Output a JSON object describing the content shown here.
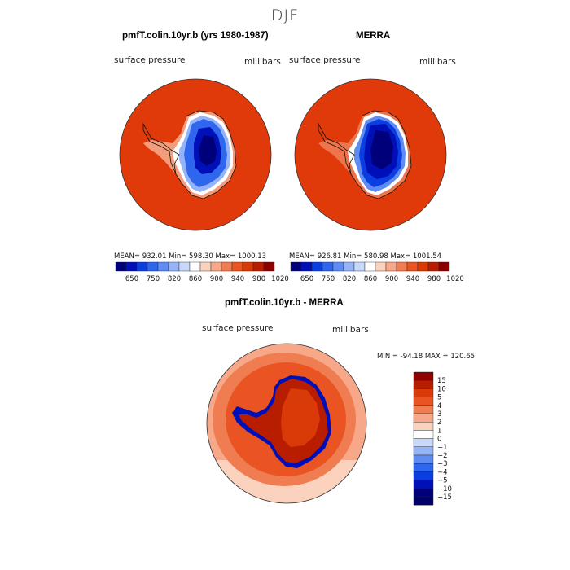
{
  "page_title": "DJF",
  "panel_left": {
    "title": "pmfT.colin.10yr.b (yrs 1980-1987)",
    "var_label": "surface pressure",
    "unit_label": "millibars",
    "stats": "MEAN= 932.01   Min= 598.30   Max= 1000.13"
  },
  "panel_right": {
    "title": "MERRA",
    "var_label": "surface pressure",
    "unit_label": "millibars",
    "stats": "MEAN= 926.81   Min= 580.98   Max= 1001.54"
  },
  "panel_diff": {
    "title": "pmfT.colin.10yr.b - MERRA",
    "var_label": "surface pressure",
    "unit_label": "millibars",
    "stats": "MIN = -94.18 MAX = 120.65"
  },
  "horizontal_colorbar": {
    "tick_labels": [
      "650",
      "750",
      "820",
      "860",
      "900",
      "940",
      "980",
      "1020"
    ],
    "colors": [
      "#00007a",
      "#0010b8",
      "#0a3ee0",
      "#2f66ee",
      "#5e8cf2",
      "#94b4f7",
      "#c8d8fb",
      "#ffffff",
      "#fbd2bd",
      "#f6a888",
      "#f07c52",
      "#ea5423",
      "#d93a08",
      "#b81d00",
      "#8c0000"
    ]
  },
  "vertical_colorbar": {
    "tick_labels": [
      "15",
      "10",
      "5",
      "4",
      "3",
      "2",
      "1",
      "0",
      "−1",
      "−2",
      "−3",
      "−4",
      "−5",
      "−10",
      "−15"
    ],
    "colors": [
      "#8c0000",
      "#b81d00",
      "#d93a08",
      "#ea5423",
      "#f07c52",
      "#f6a888",
      "#fbd2bd",
      "#ffffff",
      "#c8d8fb",
      "#94b4f7",
      "#5e8cf2",
      "#2f66ee",
      "#0a3ee0",
      "#0010b8",
      "#00007a",
      "#00006a"
    ]
  },
  "colors": {
    "ocean_high": "#e03a0a",
    "land_deep": "#00007a",
    "land_mid": "#0a3ee0",
    "land_light": "#94b4f7",
    "diff_outer": "#f6a888",
    "diff_mid": "#fbd2bd",
    "diff_inner": "#f07c52",
    "diff_land": "#b81d00"
  }
}
